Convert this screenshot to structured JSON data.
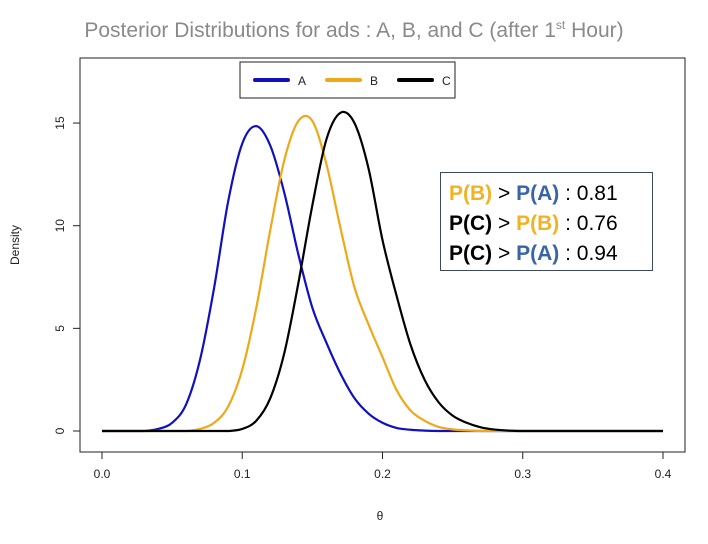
{
  "title": {
    "text": "Posterior Distributions for ads : A, B, and C (after 1",
    "sup": "st",
    "tail": " Hour)"
  },
  "annotation": {
    "lines": [
      {
        "left": "P(B)",
        "left_color": "#f0b323",
        "op": " > ",
        "right": "P(A)",
        "right_color": "#3a64a8",
        "value": " : 0.81"
      },
      {
        "left": "P(C)",
        "left_color": "#000000",
        "op": " > ",
        "right": "P(B)",
        "right_color": "#f0b323",
        "value": " : 0.76"
      },
      {
        "left": "P(C)",
        "left_color": "#000000",
        "op": " > ",
        "right": "P(A)",
        "right_color": "#3a64a8",
        "value": " : 0.94"
      }
    ]
  },
  "chart_data": {
    "type": "line",
    "title": "Posterior Distributions for ads : A, B, and C (after 1st Hour)",
    "xlabel": "θ",
    "ylabel": "Density",
    "xlim": [
      0,
      0.4
    ],
    "ylim": [
      0,
      16
    ],
    "xticks": [
      "0.0",
      "0.1",
      "0.2",
      "0.3",
      "0.4"
    ],
    "xtick_values": [
      0,
      0.1,
      0.2,
      0.3,
      0.4
    ],
    "yticks": [
      "0",
      "5",
      "10",
      "15"
    ],
    "ytick_values": [
      0,
      5,
      10,
      15
    ],
    "grid": false,
    "legend": "top-center",
    "x": [
      0,
      0.01,
      0.02,
      0.03,
      0.04,
      0.05,
      0.06,
      0.07,
      0.08,
      0.09,
      0.1,
      0.11,
      0.12,
      0.13,
      0.14,
      0.15,
      0.16,
      0.17,
      0.18,
      0.19,
      0.2,
      0.21,
      0.22,
      0.23,
      0.24,
      0.25,
      0.26,
      0.27,
      0.28,
      0.29,
      0.3,
      0.31,
      0.32,
      0.33,
      0.34,
      0.35,
      0.36,
      0.37,
      0.38,
      0.39,
      0.4
    ],
    "series": [
      {
        "name": "A",
        "color": "#1010c0",
        "values": [
          0,
          0,
          0,
          0,
          0.1,
          0.4,
          1.3,
          3.5,
          7.0,
          11.2,
          14.0,
          14.85,
          13.9,
          11.6,
          8.6,
          6.0,
          4.3,
          2.8,
          1.6,
          0.85,
          0.4,
          0.15,
          0.06,
          0.02,
          0,
          0,
          0,
          0,
          0,
          0,
          0,
          0,
          0,
          0,
          0,
          0,
          0,
          0,
          0,
          0,
          0
        ]
      },
      {
        "name": "B",
        "color": "#f0a818",
        "values": [
          0,
          0,
          0,
          0,
          0,
          0,
          0,
          0.1,
          0.4,
          1.2,
          3.0,
          6.0,
          9.8,
          13.2,
          15.1,
          15.1,
          13.0,
          9.9,
          7.0,
          5.2,
          3.6,
          2.0,
          1.0,
          0.5,
          0.2,
          0.08,
          0.03,
          0,
          0,
          0,
          0,
          0,
          0,
          0,
          0,
          0,
          0,
          0,
          0,
          0,
          0
        ]
      },
      {
        "name": "C",
        "color": "#000000",
        "values": [
          0,
          0,
          0,
          0,
          0,
          0,
          0,
          0,
          0,
          0,
          0.1,
          0.5,
          1.6,
          3.8,
          7.2,
          11.0,
          14.2,
          15.5,
          15.0,
          12.8,
          9.3,
          6.6,
          4.2,
          2.5,
          1.4,
          0.75,
          0.4,
          0.18,
          0.07,
          0.02,
          0,
          0,
          0,
          0,
          0,
          0,
          0,
          0,
          0,
          0,
          0
        ]
      }
    ]
  }
}
